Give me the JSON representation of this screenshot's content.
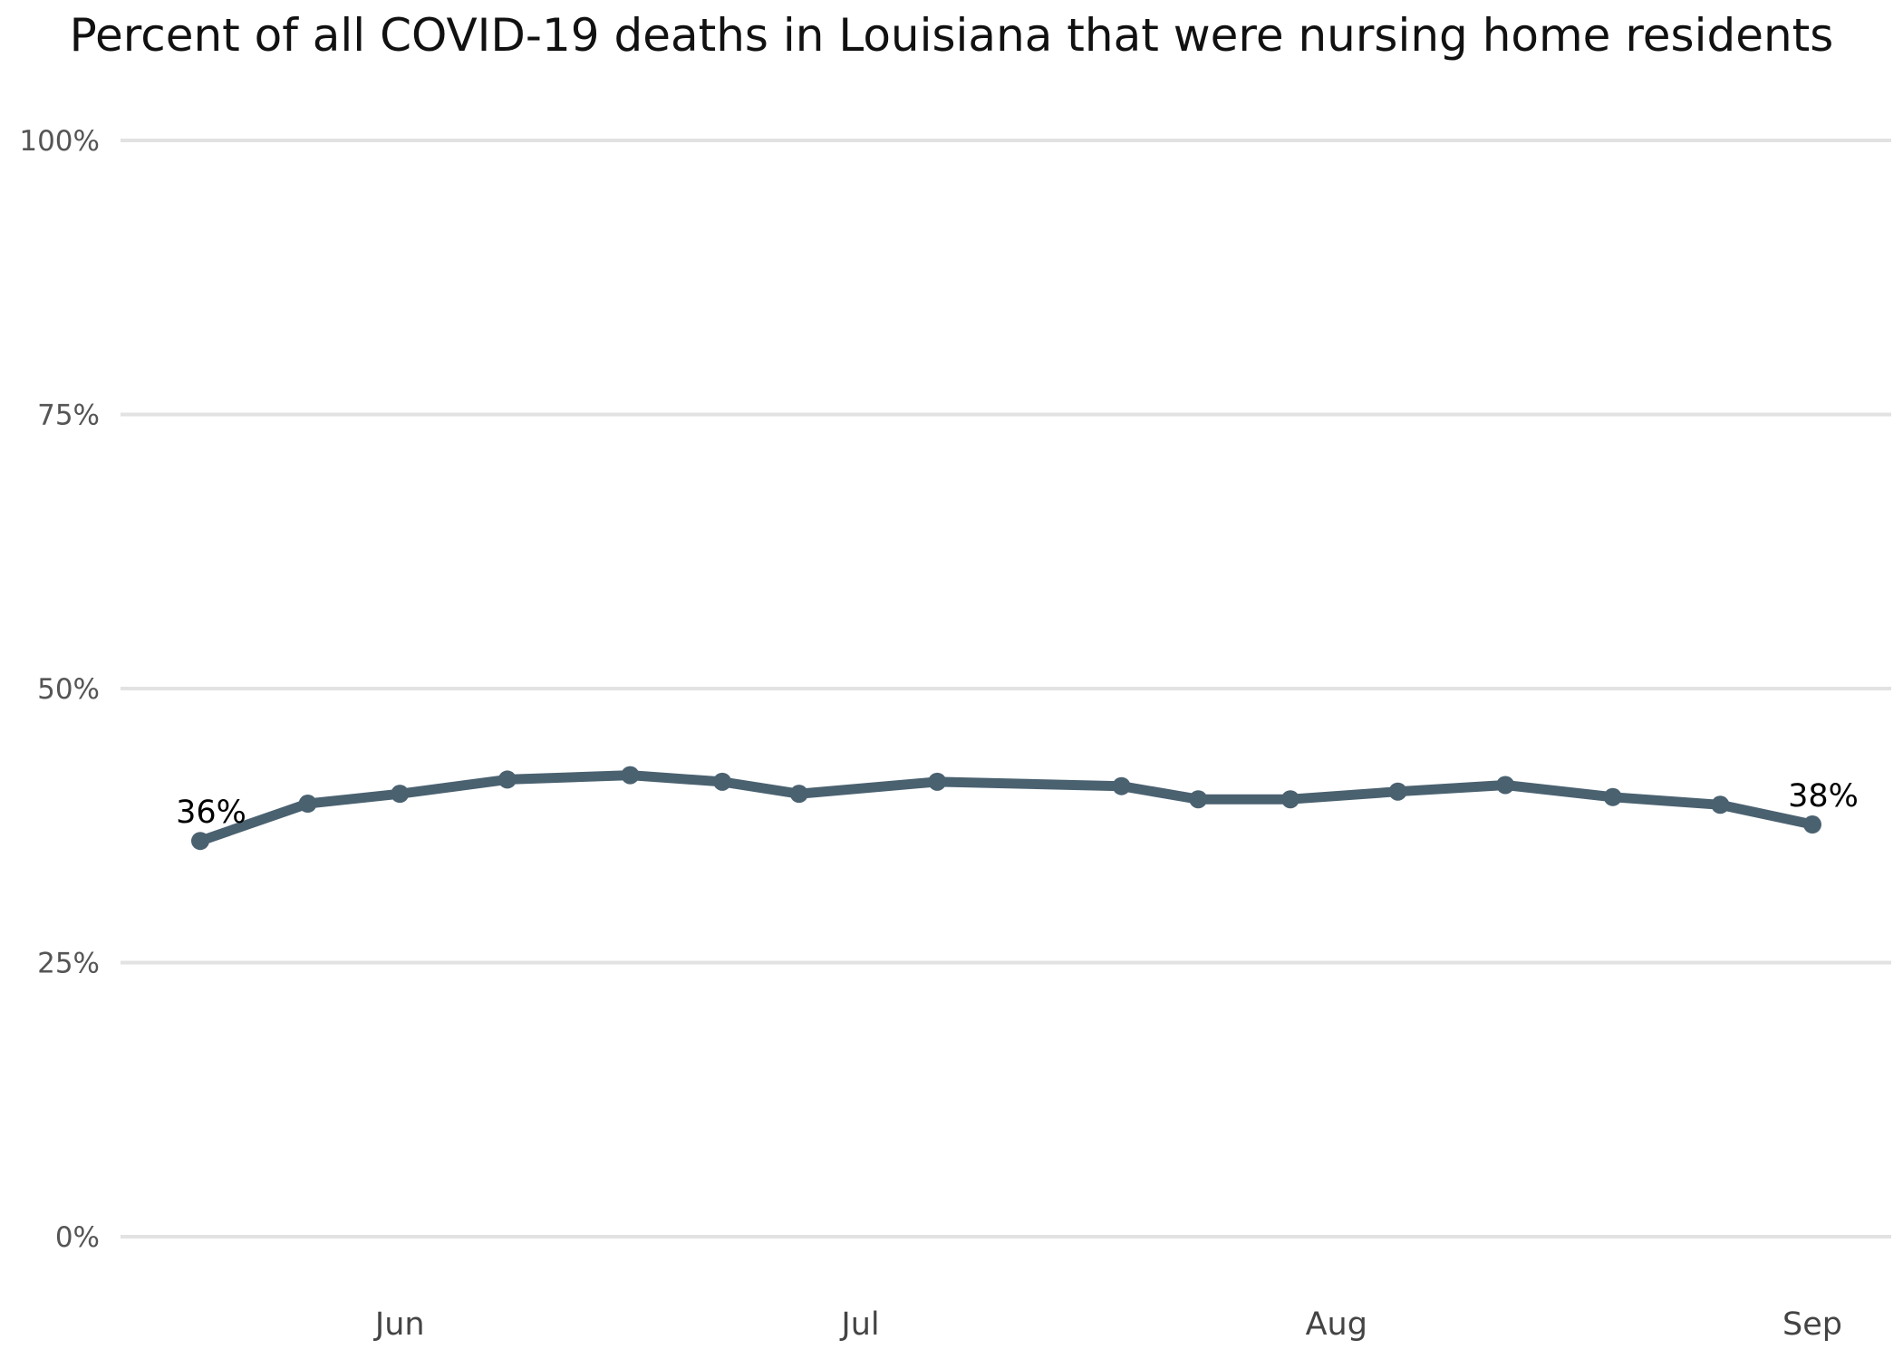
{
  "chart_data": {
    "type": "line",
    "title": "Percent of all COVID-19 deaths in Louisiana that were nursing home residents",
    "xlabel": "",
    "ylabel": "",
    "ylim": [
      0,
      1
    ],
    "y_ticks": [
      {
        "value": 0,
        "label": "0%"
      },
      {
        "value": 0.25,
        "label": "25%"
      },
      {
        "value": 0.5,
        "label": "50%"
      },
      {
        "value": 0.75,
        "label": "75%"
      },
      {
        "value": 1,
        "label": "100%"
      }
    ],
    "xlim": [
      "2020-05-15",
      "2020-09-01"
    ],
    "x_ticks": [
      {
        "date": "2020-06-01",
        "label": "Jun"
      },
      {
        "date": "2020-07-01",
        "label": "Jul"
      },
      {
        "date": "2020-08-01",
        "label": "Aug"
      },
      {
        "date": "2020-09-01",
        "label": "Sep"
      }
    ],
    "grid": "horizontal",
    "legend": "none",
    "series": [
      {
        "color": "#4a6170",
        "points": [
          {
            "date": "2020-05-19",
            "value": 0.361
          },
          {
            "date": "2020-05-26",
            "value": 0.395
          },
          {
            "date": "2020-06-01",
            "value": 0.404
          },
          {
            "date": "2020-06-08",
            "value": 0.417
          },
          {
            "date": "2020-06-16",
            "value": 0.421
          },
          {
            "date": "2020-06-22",
            "value": 0.415
          },
          {
            "date": "2020-06-27",
            "value": 0.404
          },
          {
            "date": "2020-07-06",
            "value": 0.415
          },
          {
            "date": "2020-07-18",
            "value": 0.411
          },
          {
            "date": "2020-07-23",
            "value": 0.399
          },
          {
            "date": "2020-07-29",
            "value": 0.399
          },
          {
            "date": "2020-08-05",
            "value": 0.406
          },
          {
            "date": "2020-08-12",
            "value": 0.412
          },
          {
            "date": "2020-08-19",
            "value": 0.401
          },
          {
            "date": "2020-08-26",
            "value": 0.394
          },
          {
            "date": "2020-09-01",
            "value": 0.376
          }
        ]
      }
    ],
    "annotations": [
      {
        "point_index": 0,
        "label": "36%"
      },
      {
        "point_index": 15,
        "label": "38%"
      }
    ]
  }
}
